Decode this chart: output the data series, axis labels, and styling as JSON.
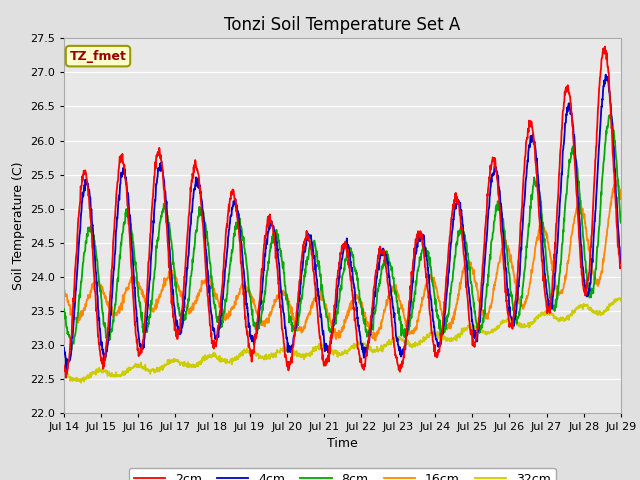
{
  "title": "Tonzi Soil Temperature Set A",
  "xlabel": "Time",
  "ylabel": "Soil Temperature (C)",
  "ylim": [
    22.0,
    27.5
  ],
  "start_day": 14,
  "end_day": 29,
  "n_days": 15,
  "background_color": "#e0e0e0",
  "plot_bg_color": "#e8e8e8",
  "grid_color": "#ffffff",
  "legend_label": "TZ_fmet",
  "legend_bg": "#ffffcc",
  "legend_border": "#999900",
  "lines": [
    {
      "label": "2cm",
      "color": "#ff0000"
    },
    {
      "label": "4cm",
      "color": "#0000cc"
    },
    {
      "label": "8cm",
      "color": "#00aa00"
    },
    {
      "label": "16cm",
      "color": "#ff8800"
    },
    {
      "label": "32cm",
      "color": "#cccc00"
    }
  ],
  "title_fontsize": 12,
  "axis_label_fontsize": 9,
  "tick_fontsize": 8,
  "legend_fontsize": 9,
  "linewidth": 1.3
}
